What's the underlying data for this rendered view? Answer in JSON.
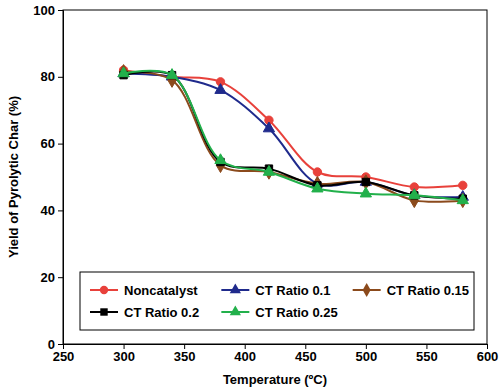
{
  "chart_data": {
    "type": "line",
    "x_label": "Temperature (ºC)",
    "y_label": "Yield of Pyrolytic Char (%)",
    "x": [
      300,
      340,
      380,
      420,
      460,
      500,
      540,
      580
    ],
    "series": [
      {
        "name": "Noncatalyst",
        "color": "#e8413b",
        "marker": "circle",
        "line_style": "smooth",
        "values": [
          82,
          80,
          78.5,
          67,
          51.5,
          50,
          47,
          47.5
        ]
      },
      {
        "name": "CT Ratio 0.1",
        "color": "#1f2a8c",
        "marker": "triangle",
        "line_style": "smooth",
        "values": [
          81,
          80,
          76,
          64.5,
          48,
          48.5,
          44.5,
          44
        ]
      },
      {
        "name": "CT Ratio 0.15",
        "color": "#8b4a1c",
        "marker": "diamond",
        "line_style": "smooth",
        "values": [
          81.5,
          79,
          53.5,
          51.5,
          48,
          48.5,
          43,
          43
        ]
      },
      {
        "name": "CT Ratio 0.2",
        "color": "#000000",
        "marker": "square",
        "line_style": "smooth",
        "values": [
          80.5,
          80.5,
          54.5,
          52.5,
          47.5,
          48.5,
          44.5,
          43.5
        ]
      },
      {
        "name": "CT Ratio 0.25",
        "color": "#22b04b",
        "marker": "triangle",
        "line_style": "smooth",
        "values": [
          81,
          80.5,
          55,
          51.5,
          46.5,
          45,
          44.5,
          43
        ]
      }
    ],
    "xlim": [
      250,
      600
    ],
    "xticks": [
      250,
      300,
      350,
      400,
      450,
      500,
      550,
      600
    ],
    "ylim": [
      0,
      100
    ],
    "yticks": [
      0,
      20,
      40,
      60,
      80,
      100
    ],
    "grid": false,
    "legend": "bottom"
  }
}
